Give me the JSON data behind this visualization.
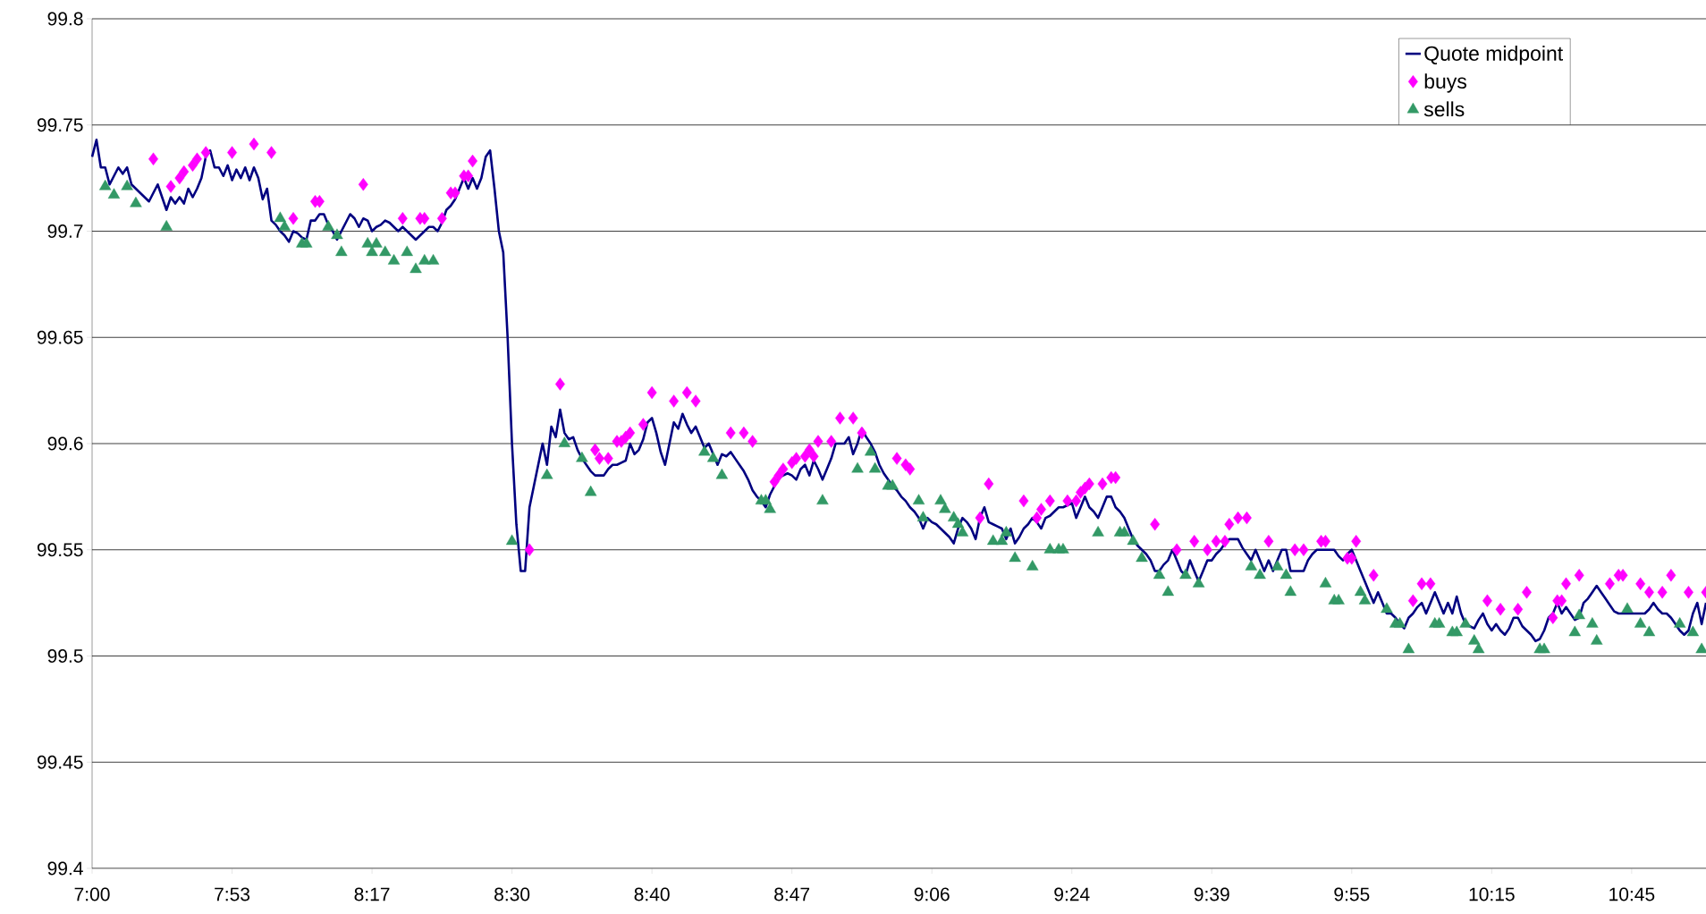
{
  "chart_data": {
    "type": "line",
    "ylim": [
      99.4,
      99.8
    ],
    "categories": [
      "7:00",
      null,
      null,
      null,
      null,
      null,
      null,
      null,
      null,
      null,
      null,
      null,
      null,
      null,
      null,
      null,
      null,
      null,
      null,
      null,
      null,
      null,
      null,
      null,
      null,
      null,
      null,
      null,
      null,
      null,
      null,
      null,
      "7:53",
      null,
      null,
      null,
      null,
      null,
      null,
      null,
      null,
      null,
      null,
      null,
      null,
      null,
      null,
      null,
      null,
      null,
      null,
      null,
      null,
      null,
      null,
      null,
      null,
      null,
      null,
      null,
      null,
      null,
      null,
      null,
      "8:17",
      null,
      null,
      null,
      null,
      null,
      null,
      null,
      null,
      null,
      null,
      null,
      null,
      null,
      null,
      null,
      null,
      null,
      null,
      null,
      null,
      null,
      null,
      null,
      null,
      null,
      null,
      null,
      null,
      null,
      null,
      null,
      "8:30",
      null,
      null,
      null,
      null,
      null,
      null,
      null,
      null,
      null,
      null,
      null,
      null,
      null,
      null,
      null,
      null,
      null,
      null,
      null,
      null,
      null,
      null,
      null,
      null,
      null,
      null,
      null,
      null,
      null,
      null,
      null,
      "8:40",
      null,
      null,
      null,
      null,
      null,
      null,
      null,
      null,
      null,
      null,
      null,
      null,
      null,
      null,
      null,
      null,
      null,
      null,
      null,
      null,
      null,
      null,
      null,
      null,
      null,
      null,
      null,
      null,
      null,
      null,
      null,
      "8:47",
      null,
      null,
      null,
      null,
      null,
      null,
      null,
      null,
      null,
      null,
      null,
      null,
      null,
      null,
      null,
      null,
      null,
      null,
      null,
      null,
      null,
      null,
      null,
      null,
      null,
      null,
      null,
      null,
      null,
      null,
      null,
      "9:06",
      null,
      null,
      null,
      null,
      null,
      null,
      null,
      null,
      null,
      null,
      null,
      null,
      null,
      null,
      null,
      null,
      null,
      null,
      null,
      null,
      null,
      null,
      null,
      null,
      null,
      null,
      null,
      null,
      null,
      null,
      null,
      "9:24",
      null,
      null,
      null,
      null,
      null,
      null,
      null,
      null,
      null,
      null,
      null,
      null,
      null,
      null,
      null,
      null,
      null,
      null,
      null,
      null,
      null,
      null,
      null,
      null,
      null,
      null,
      null,
      null,
      null,
      null,
      null,
      "9:39",
      null,
      null,
      null,
      null,
      null,
      null,
      null,
      null,
      null,
      null,
      null,
      null,
      null,
      null,
      null,
      null,
      null,
      null,
      null,
      null,
      null,
      null,
      null,
      null,
      null,
      null,
      null,
      null,
      null,
      null,
      null,
      "9:55",
      null,
      null,
      null,
      null,
      null,
      null,
      null,
      null,
      null,
      null,
      null,
      null,
      null,
      null,
      null,
      null,
      null,
      null,
      null,
      null,
      null,
      null,
      null,
      null,
      null,
      null,
      null,
      null,
      null,
      null,
      null,
      "10:15",
      null,
      null,
      null,
      null,
      null,
      null,
      null,
      null,
      null,
      null,
      null,
      null,
      null,
      null,
      null,
      null,
      null,
      null,
      null,
      null,
      null,
      null,
      null,
      null,
      null,
      null,
      null,
      null,
      null,
      null,
      null,
      "10:45",
      null,
      null,
      null,
      null,
      null,
      null,
      null,
      null,
      null,
      null,
      null,
      null,
      null,
      null,
      null,
      null,
      null
    ],
    "yticks": [
      99.4,
      99.45,
      99.5,
      99.55,
      99.6,
      99.65,
      99.7,
      99.75,
      99.8
    ],
    "grid": "y",
    "legend": "top right",
    "series": [
      {
        "name": "Quote midpoint",
        "marker": "none",
        "color": "#000080",
        "values": [
          99.735,
          99.743,
          99.73,
          99.73,
          99.722,
          99.726,
          99.73,
          99.727,
          99.73,
          99.722,
          99.72,
          99.718,
          99.716,
          99.714,
          99.718,
          99.722,
          99.716,
          99.71,
          99.716,
          99.713,
          99.716,
          99.713,
          99.72,
          99.716,
          99.72,
          99.725,
          99.735,
          99.738,
          99.73,
          99.73,
          99.726,
          99.731,
          99.724,
          99.729,
          99.725,
          99.73,
          99.724,
          99.73,
          99.725,
          99.715,
          99.72,
          99.705,
          99.703,
          99.7,
          99.698,
          99.695,
          99.7,
          99.699,
          99.697,
          99.696,
          99.705,
          99.705,
          99.708,
          99.708,
          99.703,
          99.7,
          99.696,
          99.7,
          99.704,
          99.708,
          99.706,
          99.702,
          99.706,
          99.705,
          99.7,
          99.702,
          99.703,
          99.705,
          99.704,
          99.702,
          99.7,
          99.702,
          99.7,
          99.698,
          99.696,
          99.698,
          99.7,
          99.702,
          99.702,
          99.7,
          99.704,
          99.71,
          99.712,
          99.715,
          99.72,
          99.725,
          99.72,
          99.725,
          99.72,
          99.725,
          99.735,
          99.738,
          99.72,
          99.7,
          99.69,
          99.65,
          99.6,
          99.562,
          99.54,
          99.54,
          99.57,
          99.58,
          99.59,
          99.6,
          99.59,
          99.608,
          99.603,
          99.616,
          99.605,
          99.602,
          99.603,
          99.597,
          99.593,
          99.59,
          99.587,
          99.585,
          99.585,
          99.585,
          99.588,
          99.59,
          99.59,
          99.591,
          99.592,
          99.6,
          99.595,
          99.597,
          99.602,
          99.61,
          99.612,
          99.605,
          99.596,
          99.59,
          99.6,
          99.61,
          99.607,
          99.614,
          99.609,
          99.605,
          99.608,
          99.603,
          99.598,
          99.6,
          99.595,
          99.59,
          99.595,
          99.594,
          99.596,
          99.593,
          99.59,
          99.587,
          99.583,
          99.578,
          99.575,
          99.573,
          99.57,
          99.576,
          99.58,
          99.584,
          99.585,
          99.586,
          99.585,
          99.583,
          99.588,
          99.59,
          99.585,
          99.592,
          99.588,
          99.583,
          99.588,
          99.593,
          99.6,
          99.6,
          99.6,
          99.603,
          99.595,
          99.6,
          99.607,
          99.603,
          99.6,
          99.596,
          99.59,
          99.586,
          99.583,
          99.58,
          99.578,
          99.575,
          99.573,
          99.57,
          99.568,
          99.565,
          99.56,
          99.565,
          99.563,
          99.562,
          99.56,
          99.558,
          99.556,
          99.553,
          99.56,
          99.565,
          99.563,
          99.56,
          99.555,
          99.565,
          99.57,
          99.563,
          99.562,
          99.561,
          99.56,
          99.555,
          99.56,
          99.553,
          99.556,
          99.56,
          99.562,
          99.565,
          99.563,
          99.56,
          99.565,
          99.566,
          99.568,
          99.57,
          99.57,
          99.571,
          99.572,
          99.565,
          99.57,
          99.575,
          99.57,
          99.568,
          99.565,
          99.57,
          99.575,
          99.575,
          99.57,
          99.568,
          99.565,
          99.56,
          99.555,
          99.552,
          99.55,
          99.548,
          99.545,
          99.54,
          99.54,
          99.543,
          99.545,
          99.55,
          99.545,
          99.54,
          99.538,
          99.545,
          99.54,
          99.535,
          99.54,
          99.545,
          99.545,
          99.548,
          99.55,
          99.553,
          99.555,
          99.555,
          99.555,
          99.551,
          99.548,
          99.545,
          99.55,
          99.545,
          99.54,
          99.545,
          99.54,
          99.545,
          99.55,
          99.55,
          99.54,
          99.54,
          99.54,
          99.54,
          99.545,
          99.548,
          99.55,
          99.55,
          99.55,
          99.55,
          99.55,
          99.547,
          99.545,
          99.548,
          99.55,
          99.545,
          99.54,
          99.535,
          99.53,
          99.525,
          99.53,
          99.525,
          99.52,
          99.52,
          99.518,
          99.515,
          99.513,
          99.518,
          99.52,
          99.523,
          99.525,
          99.52,
          99.525,
          99.53,
          99.525,
          99.52,
          99.525,
          99.52,
          99.528,
          99.52,
          99.515,
          99.514,
          99.513,
          99.517,
          99.52,
          99.515,
          99.512,
          99.515,
          99.512,
          99.51,
          99.513,
          99.518,
          99.518,
          99.514,
          99.512,
          99.51,
          99.507,
          99.508,
          99.512,
          99.518,
          99.52,
          99.525,
          99.52,
          99.523,
          99.52,
          99.517,
          99.518,
          99.525,
          99.527,
          99.53,
          99.533,
          99.53,
          99.527,
          99.524,
          99.521,
          99.52,
          99.52,
          99.52,
          99.52,
          99.52,
          99.52,
          99.52,
          99.522,
          99.525,
          99.522,
          99.52,
          99.52,
          99.518,
          99.515,
          99.512,
          99.51,
          99.512,
          99.52,
          99.525,
          99.515,
          99.525
        ]
      },
      {
        "name": "buys",
        "type": "scatter",
        "marker": "diamond",
        "color": "#ff00ff",
        "values": [
          null,
          null,
          null,
          null,
          null,
          null,
          null,
          null,
          null,
          null,
          null,
          null,
          null,
          null,
          99.734,
          null,
          null,
          null,
          99.721,
          null,
          99.725,
          99.728,
          null,
          99.731,
          99.734,
          null,
          99.737,
          null,
          null,
          null,
          null,
          null,
          99.737,
          null,
          null,
          null,
          null,
          99.741,
          null,
          null,
          null,
          99.737,
          null,
          null,
          null,
          null,
          99.706,
          null,
          null,
          null,
          null,
          99.714,
          99.714,
          null,
          null,
          null,
          null,
          null,
          null,
          null,
          null,
          null,
          99.722,
          null,
          null,
          null,
          null,
          null,
          null,
          null,
          null,
          99.706,
          null,
          null,
          null,
          99.706,
          99.706,
          null,
          null,
          null,
          99.706,
          null,
          99.718,
          99.718,
          null,
          99.726,
          99.726,
          99.733,
          null,
          null,
          null,
          null,
          null,
          null,
          null,
          null,
          null,
          null,
          null,
          null,
          99.55,
          null,
          null,
          null,
          null,
          null,
          null,
          99.628,
          null,
          null,
          null,
          null,
          null,
          null,
          null,
          99.597,
          99.593,
          null,
          99.593,
          null,
          99.601,
          99.601,
          99.603,
          99.605,
          null,
          null,
          99.609,
          null,
          99.624,
          null,
          null,
          null,
          null,
          99.62,
          null,
          null,
          99.624,
          null,
          99.62,
          null,
          null,
          null,
          null,
          null,
          null,
          null,
          99.605,
          null,
          null,
          99.605,
          null,
          99.601,
          null,
          null,
          null,
          null,
          99.582,
          99.585,
          99.588,
          null,
          99.591,
          99.593,
          null,
          99.594,
          99.597,
          99.594,
          99.601,
          null,
          null,
          99.601,
          null,
          99.612,
          null,
          null,
          99.612,
          null,
          99.605,
          null,
          null,
          null,
          null,
          null,
          null,
          null,
          99.593,
          null,
          99.59,
          99.588,
          null,
          null,
          null,
          null,
          null,
          null,
          null,
          null,
          null,
          null,
          null,
          null,
          null,
          null,
          null,
          99.565,
          null,
          99.581,
          null,
          null,
          null,
          null,
          null,
          null,
          null,
          99.573,
          null,
          null,
          99.565,
          99.569,
          null,
          99.573,
          null,
          null,
          null,
          99.573,
          null,
          99.573,
          99.577,
          99.579,
          99.581,
          null,
          null,
          99.581,
          null,
          99.584,
          99.584,
          null,
          null,
          null,
          null,
          null,
          null,
          null,
          null,
          99.562,
          null,
          null,
          null,
          null,
          99.55,
          null,
          null,
          null,
          99.554,
          null,
          null,
          99.55,
          null,
          99.554,
          null,
          99.554,
          99.562,
          null,
          99.565,
          null,
          99.565,
          null,
          null,
          null,
          null,
          99.554,
          null,
          null,
          null,
          null,
          null,
          99.55,
          null,
          99.55,
          null,
          null,
          null,
          99.554,
          99.554,
          null,
          null,
          null,
          null,
          99.546,
          99.546,
          99.554,
          null,
          null,
          null,
          99.538,
          null,
          null,
          null,
          null,
          null,
          null,
          null,
          null,
          99.526,
          null,
          99.534,
          null,
          99.534,
          null,
          null,
          null,
          null,
          null,
          null,
          null,
          null,
          null,
          null,
          null,
          null,
          99.526,
          null,
          null,
          99.522,
          null,
          null,
          null,
          99.522,
          null,
          99.53,
          null,
          null,
          null,
          null,
          null,
          99.518,
          99.526,
          99.526,
          99.534,
          null,
          null,
          99.538,
          null,
          null,
          null,
          null,
          null,
          null,
          99.534,
          null,
          99.538,
          99.538,
          null,
          null,
          null,
          99.534,
          null,
          99.53,
          null,
          null,
          99.53,
          null,
          99.538,
          null,
          null,
          null,
          99.53,
          null,
          null,
          null,
          99.53
        ]
      },
      {
        "name": "sells",
        "type": "scatter",
        "marker": "triangle",
        "color": "#339966",
        "values": [
          null,
          null,
          null,
          99.721,
          null,
          99.717,
          null,
          null,
          99.721,
          null,
          99.713,
          null,
          null,
          null,
          null,
          null,
          null,
          99.702,
          null,
          null,
          null,
          null,
          null,
          null,
          null,
          null,
          null,
          null,
          null,
          null,
          null,
          null,
          null,
          null,
          null,
          null,
          null,
          null,
          null,
          null,
          null,
          null,
          null,
          99.706,
          99.702,
          null,
          null,
          null,
          99.694,
          99.694,
          null,
          null,
          null,
          null,
          99.702,
          null,
          99.698,
          99.69,
          null,
          null,
          null,
          null,
          null,
          99.694,
          99.69,
          99.694,
          null,
          99.69,
          null,
          99.686,
          null,
          null,
          99.69,
          null,
          99.682,
          null,
          99.686,
          null,
          99.686,
          null,
          null,
          null,
          null,
          null,
          null,
          null,
          null,
          null,
          null,
          null,
          null,
          null,
          null,
          null,
          null,
          null,
          99.554,
          null,
          null,
          null,
          null,
          null,
          null,
          null,
          99.585,
          null,
          null,
          null,
          99.6,
          null,
          null,
          null,
          99.593,
          null,
          99.577,
          null,
          null,
          null,
          null,
          null,
          null,
          null,
          null,
          null,
          null,
          null,
          null,
          null,
          null,
          null,
          null,
          null,
          null,
          null,
          null,
          null,
          null,
          null,
          null,
          null,
          99.596,
          null,
          99.593,
          null,
          99.585,
          null,
          null,
          null,
          null,
          null,
          null,
          null,
          null,
          99.573,
          99.573,
          99.569,
          null,
          null,
          null,
          null,
          null,
          null,
          null,
          null,
          null,
          null,
          null,
          99.573,
          null,
          null,
          null,
          null,
          null,
          null,
          null,
          99.588,
          null,
          null,
          99.596,
          99.588,
          null,
          null,
          99.58,
          99.58,
          null,
          null,
          null,
          null,
          null,
          99.573,
          99.565,
          null,
          null,
          null,
          99.573,
          99.569,
          null,
          99.565,
          99.562,
          99.558,
          null,
          null,
          null,
          null,
          null,
          null,
          99.554,
          null,
          99.554,
          99.558,
          null,
          99.546,
          null,
          null,
          null,
          99.542,
          null,
          null,
          null,
          99.55,
          null,
          99.55,
          99.55,
          null,
          null,
          null,
          null,
          null,
          null,
          null,
          99.558,
          null,
          null,
          null,
          null,
          99.558,
          99.558,
          null,
          99.554,
          null,
          99.546,
          null,
          null,
          null,
          99.538,
          null,
          99.53,
          null,
          null,
          null,
          99.538,
          null,
          null,
          99.534,
          null,
          null,
          null,
          null,
          null,
          null,
          null,
          null,
          null,
          null,
          null,
          99.542,
          null,
          99.538,
          null,
          null,
          null,
          99.542,
          null,
          99.538,
          99.53,
          null,
          null,
          null,
          null,
          null,
          null,
          null,
          99.534,
          null,
          99.526,
          99.526,
          null,
          null,
          null,
          null,
          99.53,
          99.526,
          null,
          null,
          null,
          null,
          99.522,
          null,
          99.515,
          99.515,
          null,
          99.503,
          null,
          null,
          null,
          null,
          null,
          99.515,
          99.515,
          null,
          null,
          99.511,
          99.511,
          null,
          99.515,
          null,
          99.507,
          99.503,
          null,
          null,
          null,
          null,
          null,
          null,
          null,
          null,
          null,
          null,
          null,
          null,
          null,
          99.503,
          99.503,
          null,
          null,
          null,
          null,
          null,
          null,
          99.511,
          99.519,
          null,
          null,
          99.515,
          99.507,
          null,
          null,
          null,
          null,
          null,
          null,
          99.522,
          null,
          null,
          99.515,
          null,
          99.511,
          null,
          null,
          null,
          null,
          null,
          null,
          99.515,
          null,
          null,
          99.511,
          null,
          99.503,
          null
        ]
      }
    ]
  }
}
